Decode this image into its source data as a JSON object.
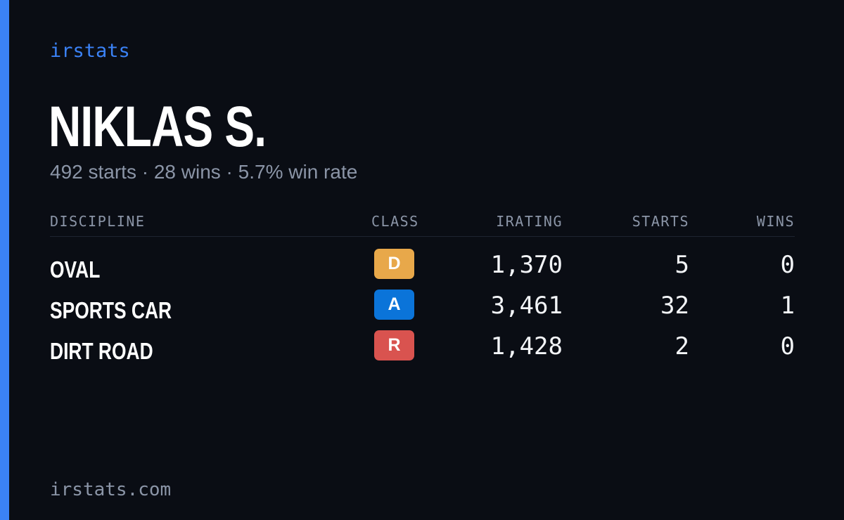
{
  "brand": "irstats",
  "profile": {
    "name": "NIKLAS S.",
    "summary": "492 starts · 28 wins · 5.7% win rate"
  },
  "table": {
    "headers": {
      "discipline": "DISCIPLINE",
      "class": "CLASS",
      "irating": "IRATING",
      "starts": "STARTS",
      "wins": "WINS"
    },
    "rows": [
      {
        "discipline": "OVAL",
        "class": "D",
        "class_color": "#e8a84a",
        "irating": "1,370",
        "starts": "5",
        "wins": "0"
      },
      {
        "discipline": "SPORTS CAR",
        "class": "A",
        "class_color": "#0b74d9",
        "irating": "3,461",
        "starts": "32",
        "wins": "1"
      },
      {
        "discipline": "DIRT ROAD",
        "class": "R",
        "class_color": "#d9534f",
        "irating": "1,428",
        "starts": "2",
        "wins": "0"
      }
    ]
  },
  "footer": "irstats.com",
  "colors": {
    "accent": "#3b82f6",
    "background": "#0a0d14",
    "muted": "#8b95a7"
  }
}
